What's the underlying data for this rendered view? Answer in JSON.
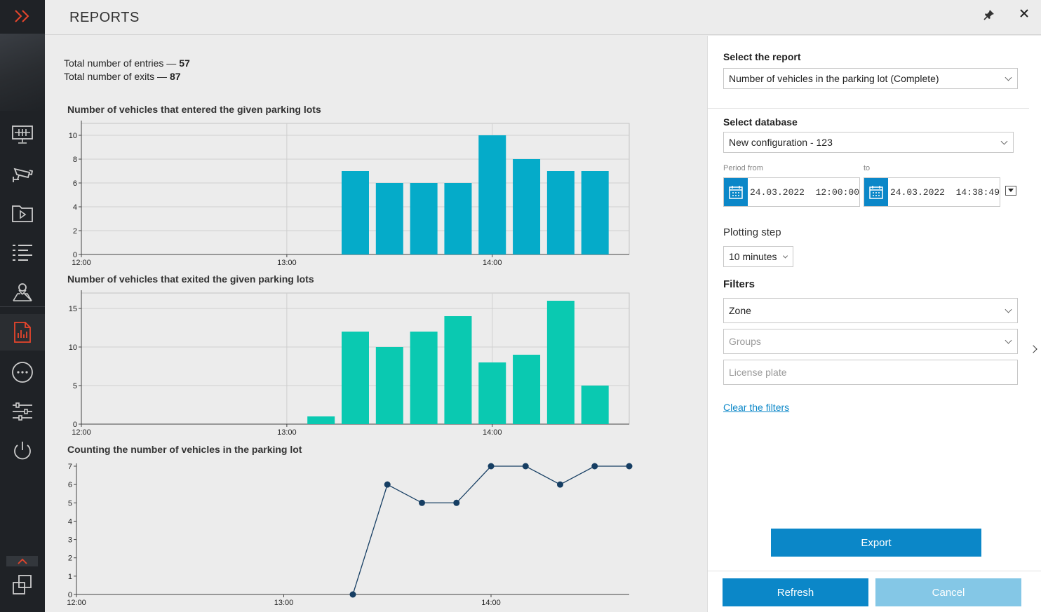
{
  "header": {
    "title": "REPORTS"
  },
  "sidebar": {
    "items": [
      {
        "icon": "expand-chevrons-icon"
      },
      {
        "icon": "monitor-icon"
      },
      {
        "icon": "camera-icon"
      },
      {
        "icon": "video-folder-icon"
      },
      {
        "icon": "list-icon"
      },
      {
        "icon": "map-pin-icon"
      },
      {
        "icon": "report-icon",
        "active": true
      },
      {
        "icon": "more-icon"
      },
      {
        "icon": "settings-sliders-icon"
      },
      {
        "icon": "power-icon"
      },
      {
        "icon": "windows-icon"
      }
    ],
    "accent_color": "#e8452c"
  },
  "totals": {
    "entries_label": "Total number of entries — ",
    "entries_value": "57",
    "exits_label": "Total number of exits — ",
    "exits_value": "87"
  },
  "chart_data": [
    {
      "type": "bar",
      "title": "Number of vehicles that entered the given parking lots",
      "x_tick_labels": [
        "12:00",
        "13:00",
        "14:00"
      ],
      "categories": [
        "13:20",
        "13:30",
        "13:40",
        "13:50",
        "14:00",
        "14:10",
        "14:20",
        "14:30"
      ],
      "values": [
        7,
        6,
        6,
        6,
        10,
        8,
        7,
        7
      ],
      "ylim": [
        0,
        11
      ],
      "y_ticks": [
        0,
        2,
        4,
        6,
        8,
        10
      ],
      "color": "#05abc9",
      "grid": true
    },
    {
      "type": "bar",
      "title": "Number of vehicles that exited the given parking lots",
      "x_tick_labels": [
        "12:00",
        "13:00",
        "14:00"
      ],
      "categories": [
        "13:10",
        "13:20",
        "13:30",
        "13:40",
        "13:50",
        "14:00",
        "14:10",
        "14:20",
        "14:30"
      ],
      "values": [
        1,
        12,
        10,
        12,
        14,
        8,
        9,
        16,
        5
      ],
      "ylim": [
        0,
        17
      ],
      "y_ticks": [
        0,
        5,
        10,
        15
      ],
      "color": "#0ac9b1",
      "grid": true
    },
    {
      "type": "line",
      "title": "Counting the number of vehicles in the parking lot",
      "x_tick_labels": [
        "12:00",
        "13:00",
        "14:00"
      ],
      "x": [
        "13:20",
        "13:30",
        "13:40",
        "13:50",
        "14:00",
        "14:10",
        "14:20",
        "14:30",
        "14:40"
      ],
      "values": [
        0,
        6,
        5,
        5,
        7,
        7,
        6,
        7,
        7
      ],
      "ylim": [
        0,
        7
      ],
      "y_ticks": [
        0,
        1,
        2,
        3,
        4,
        5,
        6,
        7
      ],
      "color": "#163e63",
      "grid": false
    }
  ],
  "panel": {
    "select_report_label": "Select the report",
    "report_value": "Number of vehicles in the parking lot (Complete)",
    "select_db_label": "Select database",
    "db_value": "New configuration - 123",
    "period_from_label": "Period from",
    "to_label": "to",
    "from_value": "24.03.2022  12:00:00",
    "to_value": "24.03.2022  14:38:49",
    "plotting_step_label": "Plotting step",
    "plotting_step_value": "10 minutes",
    "filters_label": "Filters",
    "zone_value": "Zone",
    "groups_placeholder": "Groups",
    "license_plate_placeholder": "License plate",
    "clear_filters": "Clear the filters",
    "export_label": "Export",
    "refresh_label": "Refresh",
    "cancel_label": "Cancel"
  }
}
